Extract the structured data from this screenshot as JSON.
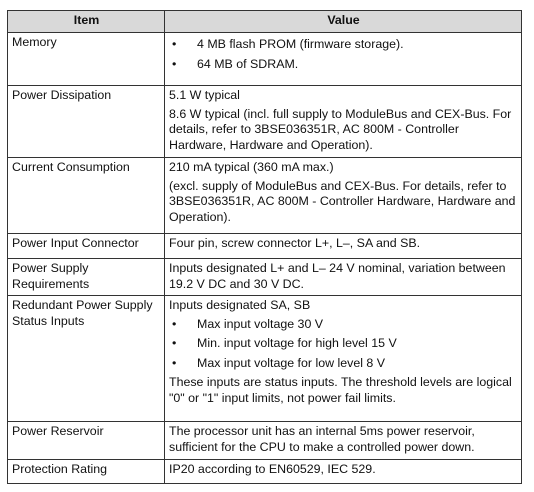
{
  "table": {
    "header": [
      "Item",
      "Value"
    ],
    "rows": [
      {
        "item": "Memory",
        "value": [
          {
            "bullets": [
              "4 MB flash PROM (firmware storage).",
              "64 MB of SDRAM."
            ]
          }
        ]
      },
      {
        "item": "Power Dissipation",
        "value": [
          {
            "text": "5.1 W typical"
          },
          {
            "text": "8.6 W typical (incl. full supply to ModuleBus and CEX-Bus. For details, refer to 3BSE036351R, AC 800M - Controller Hardware, Hardware and Operation)."
          }
        ]
      },
      {
        "item": "Current Consumption",
        "value": [
          {
            "text": "210 mA typical (360 mA max.)"
          },
          {
            "text": "(excl. supply of ModuleBus and CEX-Bus. For details, refer to 3BSE036351R, AC 800M - Controller Hardware, Hardware and Operation)."
          }
        ]
      },
      {
        "item": "Power Input Connector",
        "value": [
          {
            "text": "Four pin, screw connector L+, L–, SA and SB."
          }
        ]
      },
      {
        "item": "Power Supply Requirements",
        "value": [
          {
            "text": "Inputs designated L+ and L– 24 V nominal, variation between 19.2 V DC and 30 V DC."
          }
        ]
      },
      {
        "item": "Redundant Power Supply Status Inputs",
        "value": [
          {
            "text": "Inputs designated SA, SB"
          },
          {
            "bullets": [
              "Max input voltage 30 V",
              "Min. input voltage for high level 15 V",
              "Max input voltage for low level 8 V"
            ]
          },
          {
            "text": "These inputs are status inputs. The threshold levels are logical \"0\" or \"1\" input limits, not power fail limits."
          }
        ]
      },
      {
        "item": "Power Reservoir",
        "value": [
          {
            "text": "The processor unit has an internal 5ms power reservoir, sufficient for the CPU to make a controlled power down."
          }
        ]
      },
      {
        "item": "Protection Rating",
        "value": [
          {
            "text": "IP20 according to EN60529, IEC 529."
          }
        ]
      }
    ]
  }
}
